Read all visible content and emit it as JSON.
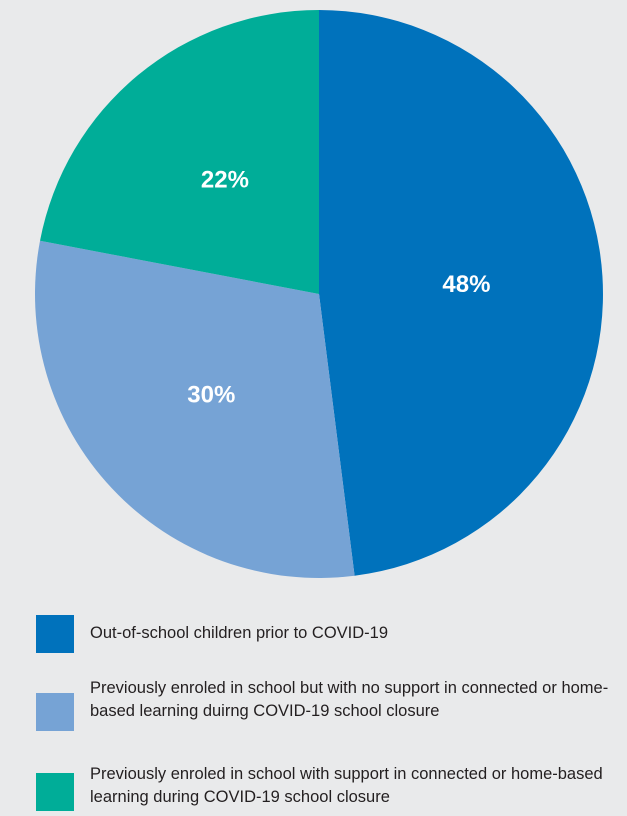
{
  "chart_data": {
    "type": "pie",
    "title": "",
    "slices": [
      {
        "label": "Out-of-school children prior to COVID-19",
        "value": 48,
        "display": "48%",
        "color": "#0072bc"
      },
      {
        "label": "Previously enroled in school but with no support in connected or home-based learning duirng COVID-19 school closure",
        "value": 30,
        "display": "30%",
        "color": "#76a3d5"
      },
      {
        "label": "Previously enroled in school with support in connected or home-based learning during COVID-19 school closure",
        "value": 22,
        "display": "22%",
        "color": "#00ad98"
      }
    ],
    "start_angle_deg": 0,
    "direction": "clockwise",
    "legend_position": "bottom"
  },
  "colors": {
    "background": "#e9eaeb",
    "label_text": "#ffffff",
    "legend_text": "#231f20"
  }
}
